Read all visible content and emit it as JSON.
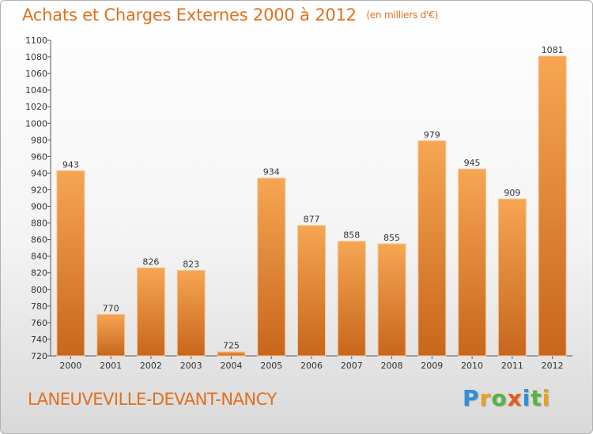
{
  "header": {
    "title": "Achats et Charges Externes 2000 à 2012",
    "subtitle": "(en milliers d'€)"
  },
  "footer": {
    "town": "LANEUVEVILLE-DEVANT-NANCY",
    "logo": {
      "letters": [
        "P",
        "r",
        "o",
        "x",
        "i",
        "t",
        "i"
      ],
      "colors": [
        "#2f8fd8",
        "#e8a21c",
        "#57b442",
        "#e35b1e",
        "#2f8fd8",
        "#57b442",
        "#e8a21c"
      ]
    }
  },
  "colors": {
    "accent": "#e0701e",
    "bar_top": "#f6a652",
    "bar_bottom": "#c8661c"
  },
  "chart_data": {
    "type": "bar",
    "title": "Achats et Charges Externes 2000 à 2012",
    "subtitle": "(en milliers d'€)",
    "categories": [
      "2000",
      "2001",
      "2002",
      "2003",
      "2004",
      "2005",
      "2006",
      "2007",
      "2008",
      "2009",
      "2010",
      "2011",
      "2012"
    ],
    "values": [
      943,
      770,
      826,
      823,
      725,
      934,
      877,
      858,
      855,
      979,
      945,
      909,
      1081
    ],
    "ylim": [
      720,
      1100
    ],
    "yticks": [
      720,
      740,
      760,
      780,
      800,
      820,
      840,
      860,
      880,
      900,
      920,
      940,
      960,
      980,
      1000,
      1020,
      1040,
      1060,
      1080,
      1100
    ],
    "xlabel": "",
    "ylabel": "",
    "grid": false,
    "data_labels": true
  }
}
